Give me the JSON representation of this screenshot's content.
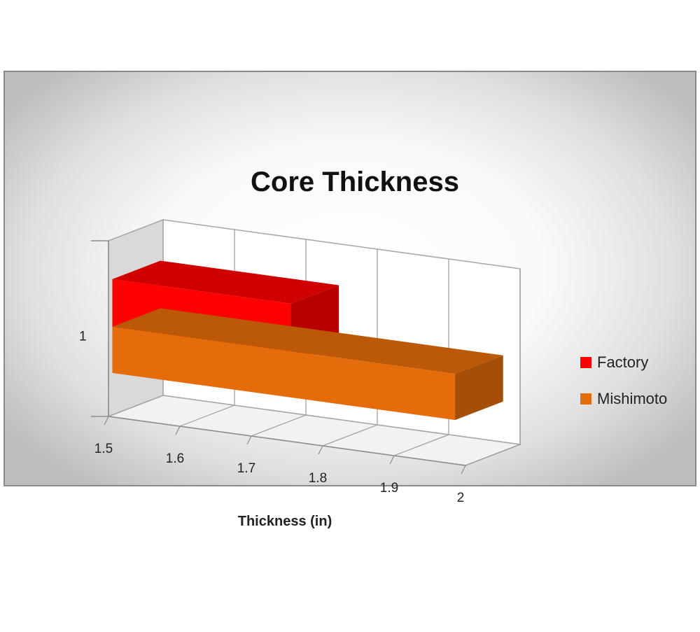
{
  "chart_data": {
    "type": "bar",
    "orientation": "horizontal",
    "style": "3d-clustered",
    "title": "Core Thickness",
    "xlabel": "Thickness (in)",
    "ylabel": "",
    "categories": [
      "1"
    ],
    "xlim": [
      1.5,
      2
    ],
    "x_ticks": [
      "1.5",
      "1.6",
      "1.7",
      "1.8",
      "1.9",
      "2"
    ],
    "grid": true,
    "legend_position": "right",
    "series": [
      {
        "name": "Factory",
        "values": [
          1.75
        ],
        "color": "#ff0000"
      },
      {
        "name": "Mishimoto",
        "values": [
          1.98
        ],
        "color": "#e46c0a"
      }
    ]
  }
}
